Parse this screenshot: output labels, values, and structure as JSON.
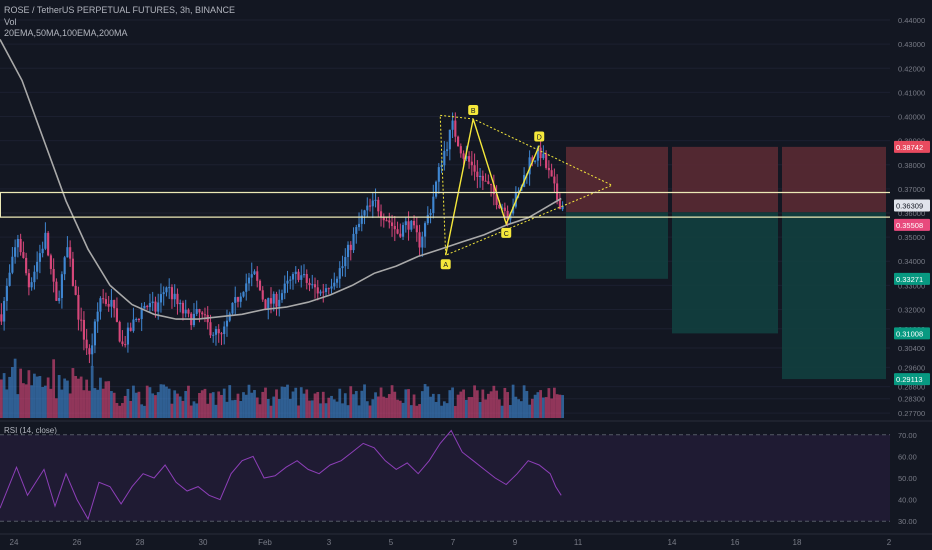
{
  "header": {
    "symbol_line": "ROSE / TetherUS PERPETUAL FUTURES, 3h, BINANCE",
    "vol_label": "Vol",
    "ma_label": "20EMA,50MA,100EMA,200MA"
  },
  "rsi_panel": {
    "label": "RSI (14, close)"
  },
  "colors": {
    "background": "#131722",
    "bull": "#3f86d1",
    "bear": "#d6477a",
    "ma_line": "#a9a9a9",
    "pattern": "#f5e83b",
    "stop_zone": "#5a2a33",
    "target_zone": "#123f3f",
    "rsi_line": "#8d3fb8",
    "rsi_band": "#1f1b33",
    "zone_outline": "#ece9b6"
  },
  "chart_data": {
    "type": "candlestick",
    "price_axis": {
      "ticks": [
        "0.44000",
        "0.43000",
        "0.42000",
        "0.41000",
        "0.40000",
        "0.39000",
        "0.38000",
        "0.37000",
        "0.36000",
        "0.35000",
        "0.34000",
        "0.33000",
        "0.32000",
        "0.31200",
        "0.30400",
        "0.29600",
        "0.28800",
        "0.28300",
        "0.27700"
      ],
      "ylim": [
        0.275,
        0.445
      ]
    },
    "price_labels": [
      {
        "text": "0.38742",
        "value": 0.38742,
        "color": "#e84a5f"
      },
      {
        "text": "0.36309",
        "value": 0.36309,
        "color": "#ffffff"
      },
      {
        "text": "0.35508",
        "value": 0.35508,
        "color": "#e84a7d"
      },
      {
        "text": "0.33271",
        "value": 0.33271,
        "color": "#089981"
      },
      {
        "text": "0.31008",
        "value": 0.31008,
        "color": "#089981"
      },
      {
        "text": "0.29113",
        "value": 0.29113,
        "color": "#089981"
      }
    ],
    "time_axis": [
      "24",
      "26",
      "28",
      "30",
      "Feb",
      "3",
      "5",
      "7",
      "9",
      "11",
      "14",
      "16",
      "18",
      "2"
    ],
    "rsi_axis": [
      "70.00",
      "60.00",
      "50.00",
      "40.00",
      "30.00"
    ],
    "rsi_bounds": [
      75,
      25
    ],
    "pattern_points": [
      {
        "label": "A",
        "price": 0.3425
      },
      {
        "label": "B",
        "price": 0.399
      },
      {
        "label": "C",
        "price": 0.3555
      },
      {
        "label": "D",
        "price": 0.388
      }
    ],
    "close_path": [
      [
        0,
        0.318
      ],
      [
        6,
        0.35
      ],
      [
        10,
        0.33
      ],
      [
        16,
        0.35
      ],
      [
        20,
        0.322
      ],
      [
        24,
        0.345
      ],
      [
        28,
        0.318
      ],
      [
        32,
        0.3
      ],
      [
        36,
        0.325
      ],
      [
        40,
        0.322
      ],
      [
        44,
        0.305
      ],
      [
        48,
        0.314
      ],
      [
        52,
        0.322
      ],
      [
        56,
        0.32
      ],
      [
        60,
        0.33
      ],
      [
        64,
        0.322
      ],
      [
        68,
        0.316
      ],
      [
        72,
        0.318
      ],
      [
        76,
        0.312
      ],
      [
        80,
        0.308
      ],
      [
        84,
        0.32
      ],
      [
        88,
        0.33
      ],
      [
        92,
        0.334
      ],
      [
        96,
        0.322
      ],
      [
        100,
        0.324
      ],
      [
        104,
        0.33
      ],
      [
        108,
        0.335
      ],
      [
        112,
        0.33
      ],
      [
        116,
        0.327
      ],
      [
        120,
        0.332
      ],
      [
        124,
        0.338
      ],
      [
        128,
        0.35
      ],
      [
        132,
        0.36
      ],
      [
        136,
        0.364
      ],
      [
        140,
        0.358
      ],
      [
        144,
        0.352
      ],
      [
        148,
        0.356
      ],
      [
        152,
        0.348
      ],
      [
        156,
        0.362
      ],
      [
        160,
        0.382
      ],
      [
        164,
        0.396
      ],
      [
        168,
        0.384
      ],
      [
        172,
        0.378
      ],
      [
        176,
        0.372
      ],
      [
        180,
        0.366
      ],
      [
        184,
        0.36
      ],
      [
        188,
        0.368
      ],
      [
        192,
        0.382
      ],
      [
        196,
        0.385
      ],
      [
        200,
        0.373
      ],
      [
        202,
        0.366
      ],
      [
        204,
        0.363
      ]
    ],
    "ma_path": [
      [
        0,
        0.432
      ],
      [
        8,
        0.415
      ],
      [
        16,
        0.39
      ],
      [
        24,
        0.365
      ],
      [
        32,
        0.345
      ],
      [
        40,
        0.33
      ],
      [
        48,
        0.322
      ],
      [
        56,
        0.318
      ],
      [
        64,
        0.316
      ],
      [
        72,
        0.316
      ],
      [
        80,
        0.317
      ],
      [
        88,
        0.318
      ],
      [
        96,
        0.32
      ],
      [
        104,
        0.321
      ],
      [
        112,
        0.323
      ],
      [
        120,
        0.326
      ],
      [
        128,
        0.33
      ],
      [
        136,
        0.335
      ],
      [
        144,
        0.338
      ],
      [
        152,
        0.342
      ],
      [
        160,
        0.345
      ],
      [
        168,
        0.348
      ],
      [
        176,
        0.351
      ],
      [
        184,
        0.355
      ],
      [
        192,
        0.358
      ],
      [
        198,
        0.362
      ],
      [
        204,
        0.366
      ]
    ],
    "rsi_path": [
      [
        0,
        36
      ],
      [
        6,
        55
      ],
      [
        10,
        42
      ],
      [
        16,
        54
      ],
      [
        20,
        37
      ],
      [
        24,
        52
      ],
      [
        28,
        40
      ],
      [
        32,
        31
      ],
      [
        36,
        48
      ],
      [
        40,
        46
      ],
      [
        44,
        38
      ],
      [
        48,
        46
      ],
      [
        52,
        52
      ],
      [
        56,
        50
      ],
      [
        60,
        56
      ],
      [
        64,
        48
      ],
      [
        68,
        44
      ],
      [
        72,
        46
      ],
      [
        76,
        42
      ],
      [
        80,
        40
      ],
      [
        84,
        52
      ],
      [
        88,
        58
      ],
      [
        92,
        60
      ],
      [
        96,
        50
      ],
      [
        100,
        51
      ],
      [
        104,
        55
      ],
      [
        108,
        58
      ],
      [
        112,
        54
      ],
      [
        116,
        52
      ],
      [
        120,
        56
      ],
      [
        124,
        58
      ],
      [
        128,
        62
      ],
      [
        132,
        66
      ],
      [
        136,
        64
      ],
      [
        140,
        58
      ],
      [
        144,
        54
      ],
      [
        148,
        57
      ],
      [
        152,
        52
      ],
      [
        156,
        58
      ],
      [
        160,
        66
      ],
      [
        164,
        72
      ],
      [
        168,
        62
      ],
      [
        172,
        58
      ],
      [
        176,
        54
      ],
      [
        180,
        50
      ],
      [
        184,
        47
      ],
      [
        188,
        52
      ],
      [
        192,
        58
      ],
      [
        196,
        56
      ],
      [
        200,
        52
      ],
      [
        202,
        46
      ],
      [
        204,
        42
      ]
    ]
  }
}
